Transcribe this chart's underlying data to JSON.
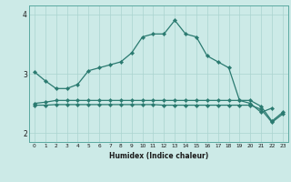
{
  "xlabel": "Humidex (Indice chaleur)",
  "background_color": "#cceae7",
  "grid_color": "#aad4d0",
  "line_color": "#2a7a70",
  "x_values": [
    0,
    1,
    2,
    3,
    4,
    5,
    6,
    7,
    8,
    9,
    10,
    11,
    12,
    13,
    14,
    15,
    16,
    17,
    18,
    19,
    20,
    21,
    22,
    23
  ],
  "line1": [
    3.03,
    2.88,
    2.75,
    2.75,
    2.82,
    3.05,
    3.1,
    3.15,
    3.2,
    3.35,
    3.62,
    3.67,
    3.67,
    3.9,
    3.67,
    3.62,
    3.3,
    3.2,
    3.1,
    2.55,
    2.5,
    2.35,
    2.42,
    null
  ],
  "line2": [
    2.5,
    2.52,
    2.55,
    2.55,
    2.55,
    2.55,
    2.55,
    2.55,
    2.55,
    2.55,
    2.55,
    2.55,
    2.55,
    2.55,
    2.55,
    2.55,
    2.55,
    2.55,
    2.55,
    2.55,
    2.55,
    2.45,
    2.2,
    2.35
  ],
  "line3": [
    2.47,
    2.47,
    2.48,
    2.48,
    2.48,
    2.48,
    2.48,
    2.48,
    2.48,
    2.48,
    2.48,
    2.48,
    2.47,
    2.47,
    2.47,
    2.47,
    2.47,
    2.47,
    2.47,
    2.47,
    2.47,
    2.4,
    2.18,
    2.32
  ],
  "ylim": [
    1.85,
    4.15
  ],
  "yticks": [
    2,
    3,
    4
  ],
  "xlim": [
    -0.5,
    23.5
  ],
  "xtick_labels": [
    "0",
    "1",
    "2",
    "3",
    "4",
    "5",
    "6",
    "7",
    "8",
    "9",
    "10",
    "11",
    "12",
    "13",
    "14",
    "15",
    "16",
    "17",
    "18",
    "19",
    "20",
    "21",
    "22",
    "23"
  ]
}
